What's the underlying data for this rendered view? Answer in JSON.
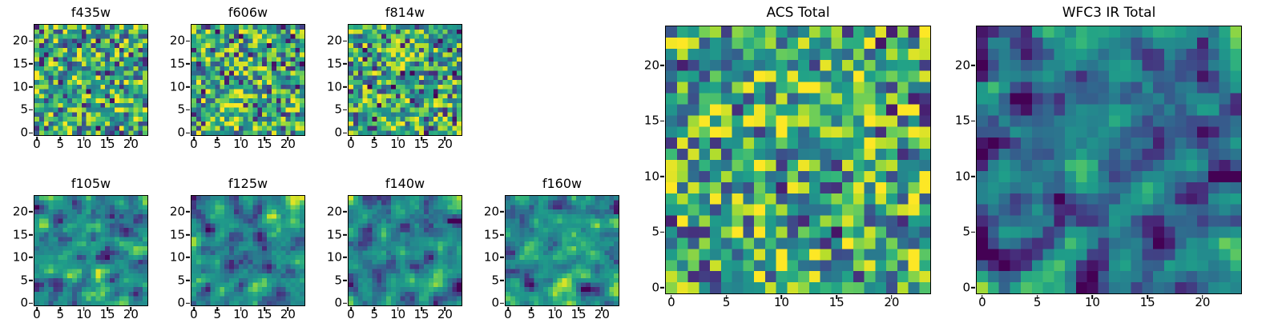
{
  "figure": {
    "background_color": "#ffffff",
    "text_color": "#000000"
  },
  "chart_data": {
    "type": "heatmap",
    "colormap": "viridis",
    "grid_shape": [
      24,
      24
    ],
    "x_ticks": [
      0,
      5,
      10,
      15,
      20
    ],
    "y_ticks": [
      0,
      5,
      10,
      15,
      20
    ],
    "value_range": [
      0,
      1
    ],
    "legend": "none",
    "grid_lines": "off",
    "panels": [
      {
        "title": "f435w",
        "size": "small",
        "noise_seed": 101,
        "smoothing": 0,
        "brightness_bias": 0.03
      },
      {
        "title": "f606w",
        "size": "small",
        "noise_seed": 202,
        "smoothing": 0,
        "brightness_bias": 0.02
      },
      {
        "title": "f814w",
        "size": "small",
        "noise_seed": 303,
        "smoothing": 0,
        "brightness_bias": 0.0
      },
      {
        "title": "f105w",
        "size": "small",
        "noise_seed": 404,
        "smoothing": 1,
        "brightness_bias": -0.04
      },
      {
        "title": "f125w",
        "size": "small",
        "noise_seed": 505,
        "smoothing": 1,
        "brightness_bias": -0.03
      },
      {
        "title": "f140w",
        "size": "small",
        "noise_seed": 606,
        "smoothing": 1,
        "brightness_bias": -0.05
      },
      {
        "title": "f160w",
        "size": "small",
        "noise_seed": 707,
        "smoothing": 1,
        "brightness_bias": -0.05
      },
      {
        "title": "ACS Total",
        "size": "large",
        "noise_seed": 808,
        "smoothing": 0,
        "brightness_bias": 0.05
      },
      {
        "title": "WFC3 IR Total",
        "size": "large",
        "noise_seed": 909,
        "smoothing": 1,
        "brightness_bias": -0.13
      }
    ]
  }
}
